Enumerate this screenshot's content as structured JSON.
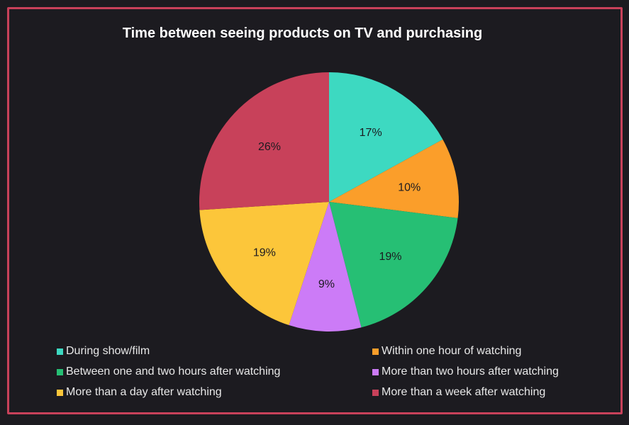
{
  "chart_data": {
    "type": "pie",
    "title": "Time between seeing products on TV and purchasing",
    "categories": [
      "During show/film",
      "Within one hour of watching",
      "Between one and two hours after watching",
      "More than two hours after watching",
      "More than a day after watching",
      "More than a week after watching"
    ],
    "values": [
      17,
      10,
      19,
      9,
      19,
      26
    ],
    "labels": [
      "17%",
      "10%",
      "19%",
      "9%",
      "19%",
      "26%"
    ],
    "colors": [
      "#3dd9c1",
      "#fb9e2a",
      "#26bf74",
      "#cc7bf7",
      "#fcc63a",
      "#c8415a"
    ],
    "legend_placement": "bottom"
  },
  "colors": {
    "border": "#c8415a",
    "background": "#1c1b20"
  }
}
